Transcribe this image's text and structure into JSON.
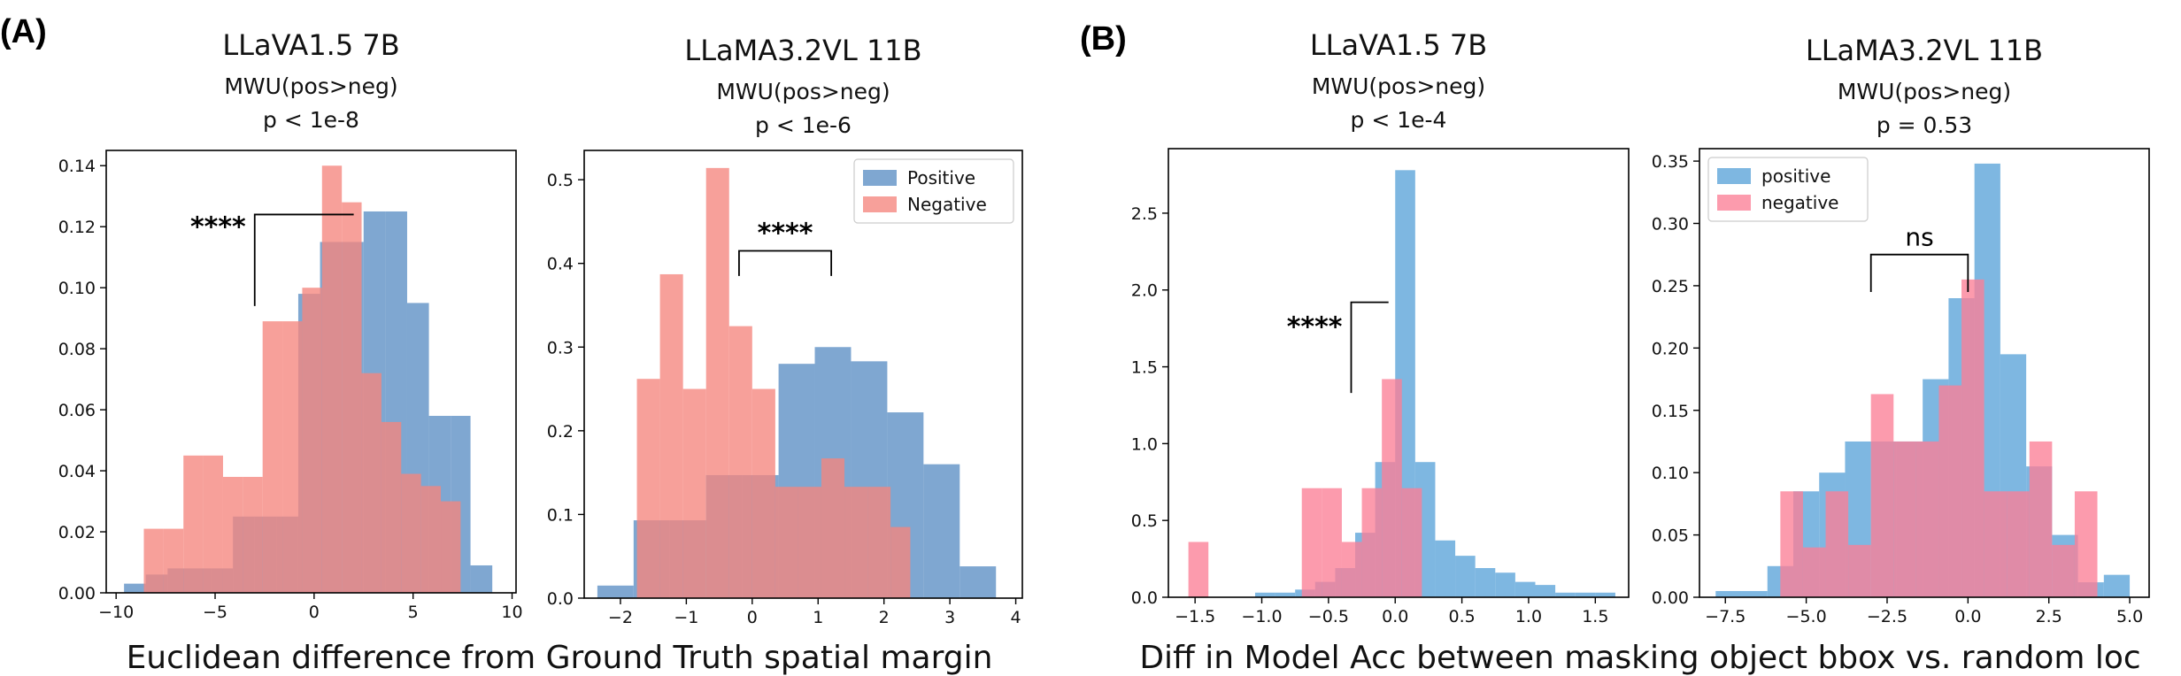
{
  "panels": [
    {
      "label": "(A)",
      "xlabel": "Euclidean difference from Ground Truth spatial margin"
    },
    {
      "label": "(B)",
      "xlabel": "Diff in Model Acc between masking object bbox vs. random loc"
    }
  ],
  "colors": {
    "positive_blue": "#5b8ec4",
    "negative_red": "#f5857e",
    "positive_blue_b": "#5aa3d8",
    "negative_red_b": "#fb7f96"
  },
  "chart_data": [
    {
      "type": "bar",
      "title": "LLaVA1.5 7B",
      "subtitle": [
        "MWU(pos>neg)",
        "p < 1e-8"
      ],
      "xlim": [
        -10.5,
        10.2
      ],
      "ylim": [
        0,
        0.145
      ],
      "xticks": [
        -10,
        -5,
        0,
        5,
        10
      ],
      "xtick_labels": [
        "−10",
        "−5",
        "0",
        "5",
        "10"
      ],
      "yticks": [
        0,
        0.02,
        0.04,
        0.06,
        0.08,
        0.1,
        0.12,
        0.14
      ],
      "ytick_labels": [
        "0.00",
        "0.02",
        "0.04",
        "0.06",
        "0.08",
        "0.10",
        "0.12",
        "0.14"
      ],
      "series": [
        {
          "name": "Positive",
          "color_key": "positive_blue",
          "edges": [
            -9.6,
            -8.5,
            -7.4,
            -6.3,
            -5.2,
            -4.1,
            -3.0,
            -1.9,
            -0.8,
            0.3,
            1.4,
            2.5,
            3.6,
            4.7,
            5.8,
            6.9,
            7.9,
            9.0
          ],
          "counts": [
            0.003,
            0.006,
            0.008,
            0.008,
            0.008,
            0.025,
            0.025,
            0.025,
            0.098,
            0.115,
            0.115,
            0.125,
            0.125,
            0.095,
            0.058,
            0.058,
            0.009
          ]
        },
        {
          "name": "Negative",
          "color_key": "negative_red",
          "edges": [
            -8.6,
            -7.6,
            -6.6,
            -5.6,
            -4.6,
            -3.6,
            -2.6,
            -1.6,
            -0.6,
            0.4,
            1.4,
            2.4,
            3.4,
            4.4,
            5.4,
            6.4,
            7.4
          ],
          "counts": [
            0.021,
            0.021,
            0.045,
            0.045,
            0.038,
            0.038,
            0.089,
            0.089,
            0.1,
            0.14,
            0.128,
            0.072,
            0.056,
            0.039,
            0.035,
            0.03
          ]
        }
      ],
      "annotation": {
        "text": "****",
        "x1": -3.0,
        "x2": 2.0,
        "y1": 0.094,
        "y2": 0.124
      }
    },
    {
      "type": "bar",
      "title": "LLaMA3.2VL 11B",
      "subtitle": [
        "MWU(pos>neg)",
        "p < 1e-6"
      ],
      "xlim": [
        -2.55,
        4.1
      ],
      "ylim": [
        0,
        0.535
      ],
      "xticks": [
        -2,
        -1,
        0,
        1,
        2,
        3,
        4
      ],
      "xtick_labels": [
        "−2",
        "−1",
        "0",
        "1",
        "2",
        "3",
        "4"
      ],
      "yticks": [
        0,
        0.1,
        0.2,
        0.3,
        0.4,
        0.5
      ],
      "ytick_labels": [
        "0.0",
        "0.1",
        "0.2",
        "0.3",
        "0.4",
        "0.5"
      ],
      "legend": {
        "position": "upper right",
        "entries": [
          "Positive",
          "Negative"
        ]
      },
      "series": [
        {
          "name": "Positive",
          "color_key": "positive_blue",
          "edges": [
            -2.35,
            -1.8,
            -1.25,
            -0.7,
            -0.15,
            0.4,
            0.95,
            1.5,
            2.05,
            2.6,
            3.15,
            3.7
          ],
          "counts": [
            0.015,
            0.093,
            0.093,
            0.147,
            0.147,
            0.28,
            0.3,
            0.283,
            0.222,
            0.16,
            0.038
          ]
        },
        {
          "name": "Negative",
          "color_key": "negative_red",
          "edges": [
            -1.75,
            -1.4,
            -1.05,
            -0.7,
            -0.35,
            0.0,
            0.35,
            0.7,
            1.05,
            1.4,
            1.75,
            2.1,
            2.4
          ],
          "counts": [
            0.262,
            0.387,
            0.25,
            0.514,
            0.325,
            0.25,
            0.133,
            0.133,
            0.167,
            0.133,
            0.133,
            0.085
          ]
        }
      ],
      "annotation": {
        "text": "****",
        "x1": -0.2,
        "x2": 1.2,
        "y1": 0.385,
        "y2": 0.415
      }
    },
    {
      "type": "bar",
      "title": "LLaVA1.5 7B",
      "subtitle": [
        "MWU(pos>neg)",
        "p < 1e-4"
      ],
      "xlim": [
        -1.7,
        1.75
      ],
      "ylim": [
        0,
        2.92
      ],
      "xticks": [
        -1.5,
        -1.0,
        -0.5,
        0.0,
        0.5,
        1.0,
        1.5
      ],
      "xtick_labels": [
        "−1.5",
        "−1.0",
        "−0.5",
        "0.0",
        "0.5",
        "1.0",
        "1.5"
      ],
      "yticks": [
        0,
        0.5,
        1.0,
        1.5,
        2.0,
        2.5
      ],
      "ytick_labels": [
        "0.0",
        "0.5",
        "1.0",
        "1.5",
        "2.0",
        "2.5"
      ],
      "series": [
        {
          "name": "Positive",
          "color_key": "positive_blue_b",
          "edges": [
            -1.05,
            -0.9,
            -0.75,
            -0.6,
            -0.45,
            -0.3,
            -0.15,
            0.0,
            0.15,
            0.3,
            0.45,
            0.6,
            0.75,
            0.9,
            1.05,
            1.2,
            1.35,
            1.5,
            1.65
          ],
          "counts": [
            0.03,
            0.03,
            0.05,
            0.1,
            0.19,
            0.42,
            0.88,
            2.78,
            0.88,
            0.37,
            0.27,
            0.19,
            0.16,
            0.1,
            0.08,
            0.03,
            0.03,
            0.03
          ]
        },
        {
          "name": "Negative",
          "color_key": "negative_red_b",
          "edges": [
            -1.55,
            -1.4,
            -0.7,
            -0.55,
            -0.4,
            -0.25,
            -0.1,
            0.05,
            0.2,
            0.35
          ],
          "counts": [
            0.36,
            0.0,
            0.71,
            0.71,
            0.36,
            0.71,
            1.42,
            0.71,
            0.0
          ]
        }
      ],
      "annotation": {
        "text": "****",
        "x1": -0.33,
        "x2": -0.05,
        "y1": 1.33,
        "y2": 1.92
      }
    },
    {
      "type": "bar",
      "title": "LLaMA3.2VL 11B",
      "subtitle": [
        "MWU(pos>neg)",
        "p = 0.53"
      ],
      "xlim": [
        -8.3,
        5.6
      ],
      "ylim": [
        0,
        0.36
      ],
      "xticks": [
        -7.5,
        -5.0,
        -2.5,
        0.0,
        2.5,
        5.0
      ],
      "xtick_labels": [
        "−7.5",
        "−5.0",
        "−2.5",
        "0.0",
        "2.5",
        "5.0"
      ],
      "yticks": [
        0,
        0.05,
        0.1,
        0.15,
        0.2,
        0.25,
        0.3,
        0.35
      ],
      "ytick_labels": [
        "0.00",
        "0.05",
        "0.10",
        "0.15",
        "0.20",
        "0.25",
        "0.30",
        "0.35"
      ],
      "legend": {
        "position": "upper left",
        "entries": [
          "positive",
          "negative"
        ]
      },
      "series": [
        {
          "name": "positive",
          "color_key": "positive_blue_b",
          "edges": [
            -7.8,
            -7.0,
            -6.2,
            -5.4,
            -4.6,
            -3.8,
            -3.0,
            -2.2,
            -1.4,
            -0.6,
            0.2,
            1.0,
            1.8,
            2.6,
            3.4,
            4.2,
            5.0
          ],
          "counts": [
            0.005,
            0.005,
            0.025,
            0.085,
            0.1,
            0.125,
            0.125,
            0.125,
            0.175,
            0.24,
            0.348,
            0.195,
            0.105,
            0.05,
            0.012,
            0.018
          ]
        },
        {
          "name": "negative",
          "color_key": "negative_red_b",
          "edges": [
            -5.8,
            -5.1,
            -4.4,
            -3.7,
            -3.0,
            -2.3,
            -1.6,
            -0.9,
            -0.2,
            0.5,
            1.2,
            1.9,
            2.6,
            3.3,
            4.0
          ],
          "counts": [
            0.085,
            0.04,
            0.085,
            0.042,
            0.163,
            0.125,
            0.125,
            0.17,
            0.255,
            0.085,
            0.085,
            0.125,
            0.042,
            0.085
          ]
        }
      ],
      "annotation": {
        "text": "ns",
        "x1": -3.0,
        "x2": 0.0,
        "y1": 0.245,
        "y2": 0.275
      }
    }
  ]
}
